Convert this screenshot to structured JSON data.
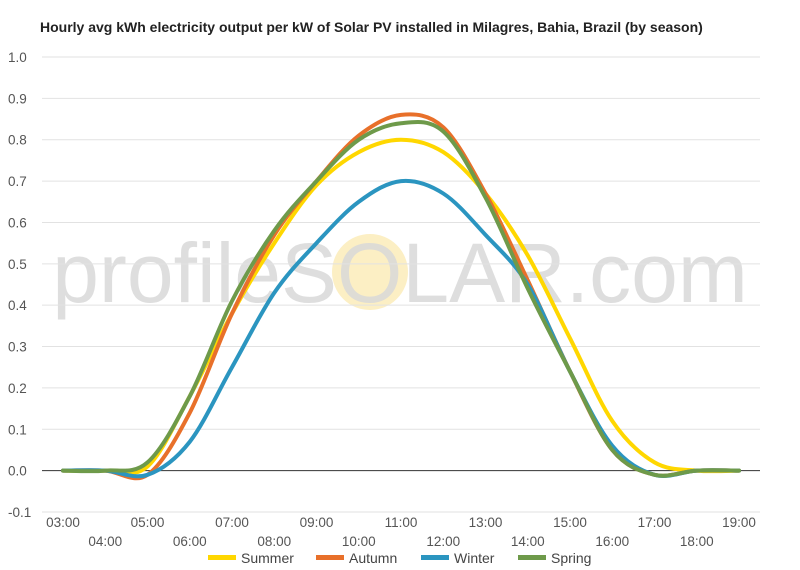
{
  "chart_data": {
    "type": "line",
    "title": "Hourly avg kWh electricity output per kW of Solar PV installed in Milagres, Bahia, Brazil (by season)",
    "watermark": "profileSOLAR.com",
    "x": [
      "03:00",
      "04:00",
      "05:00",
      "06:00",
      "07:00",
      "08:00",
      "09:00",
      "10:00",
      "11:00",
      "12:00",
      "13:00",
      "14:00",
      "15:00",
      "16:00",
      "17:00",
      "18:00",
      "19:00"
    ],
    "ylim": [
      -0.1,
      1.0
    ],
    "yticks": [
      "1.0",
      "0.9",
      "0.8",
      "0.7",
      "0.6",
      "0.5",
      "0.4",
      "0.3",
      "0.2",
      "0.1",
      "0.0",
      "-0.1"
    ],
    "grid": true,
    "legend_position": "bottom",
    "series": [
      {
        "name": "Summer",
        "color": "#FFD700",
        "values": [
          0.0,
          0.0,
          0.01,
          0.18,
          0.38,
          0.55,
          0.69,
          0.77,
          0.8,
          0.77,
          0.67,
          0.52,
          0.32,
          0.12,
          0.02,
          0.0,
          0.0
        ]
      },
      {
        "name": "Autumn",
        "color": "#E8702A",
        "values": [
          0.0,
          0.0,
          -0.01,
          0.14,
          0.38,
          0.57,
          0.7,
          0.81,
          0.86,
          0.83,
          0.67,
          0.46,
          0.24,
          0.05,
          -0.01,
          0.0,
          0.0
        ]
      },
      {
        "name": "Winter",
        "color": "#2B95C0",
        "values": [
          0.0,
          0.0,
          -0.01,
          0.07,
          0.25,
          0.43,
          0.55,
          0.65,
          0.7,
          0.67,
          0.57,
          0.45,
          0.24,
          0.06,
          -0.01,
          0.0,
          0.0
        ]
      },
      {
        "name": "Spring",
        "color": "#6E9A4A",
        "values": [
          0.0,
          0.0,
          0.02,
          0.18,
          0.41,
          0.58,
          0.7,
          0.8,
          0.84,
          0.82,
          0.66,
          0.44,
          0.24,
          0.05,
          -0.01,
          0.0,
          0.0
        ]
      }
    ]
  }
}
